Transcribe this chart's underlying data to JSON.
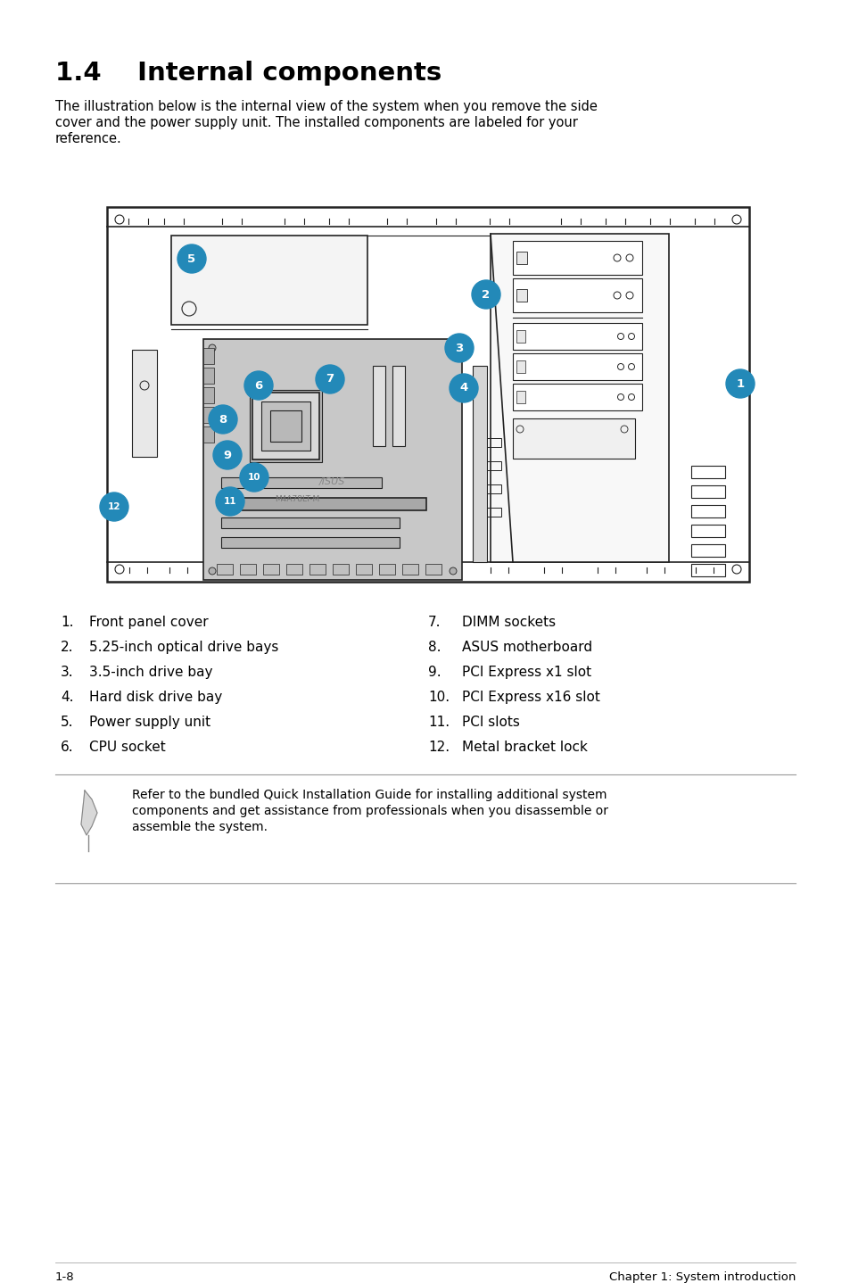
{
  "title": "1.4    Internal components",
  "description": "The illustration below is the internal view of the system when you remove the side cover and the power supply unit. The installed components are labeled for your reference.",
  "items_left": [
    [
      "1.",
      "Front panel cover"
    ],
    [
      "2.",
      "5.25-inch optical drive bays"
    ],
    [
      "3.",
      "3.5-inch drive bay"
    ],
    [
      "4.",
      "Hard disk drive bay"
    ],
    [
      "5.",
      "Power supply unit"
    ],
    [
      "6.",
      "CPU socket"
    ]
  ],
  "items_right": [
    [
      "7.",
      "DIMM sockets"
    ],
    [
      "8.",
      "ASUS motherboard"
    ],
    [
      "9.",
      "PCI Express x1 slot"
    ],
    [
      "10.",
      "PCI Express x16 slot"
    ],
    [
      "11.",
      "PCI slots"
    ],
    [
      "12.",
      "Metal bracket lock"
    ]
  ],
  "note_text": "Refer to the bundled Quick Installation Guide for installing additional system components and get assistance from professionals when you disassemble or assemble the system.",
  "footer_left": "1-8",
  "footer_right": "Chapter 1: System introduction",
  "bg_color": "#ffffff",
  "text_color": "#000000",
  "callout_color": "#2389b8"
}
